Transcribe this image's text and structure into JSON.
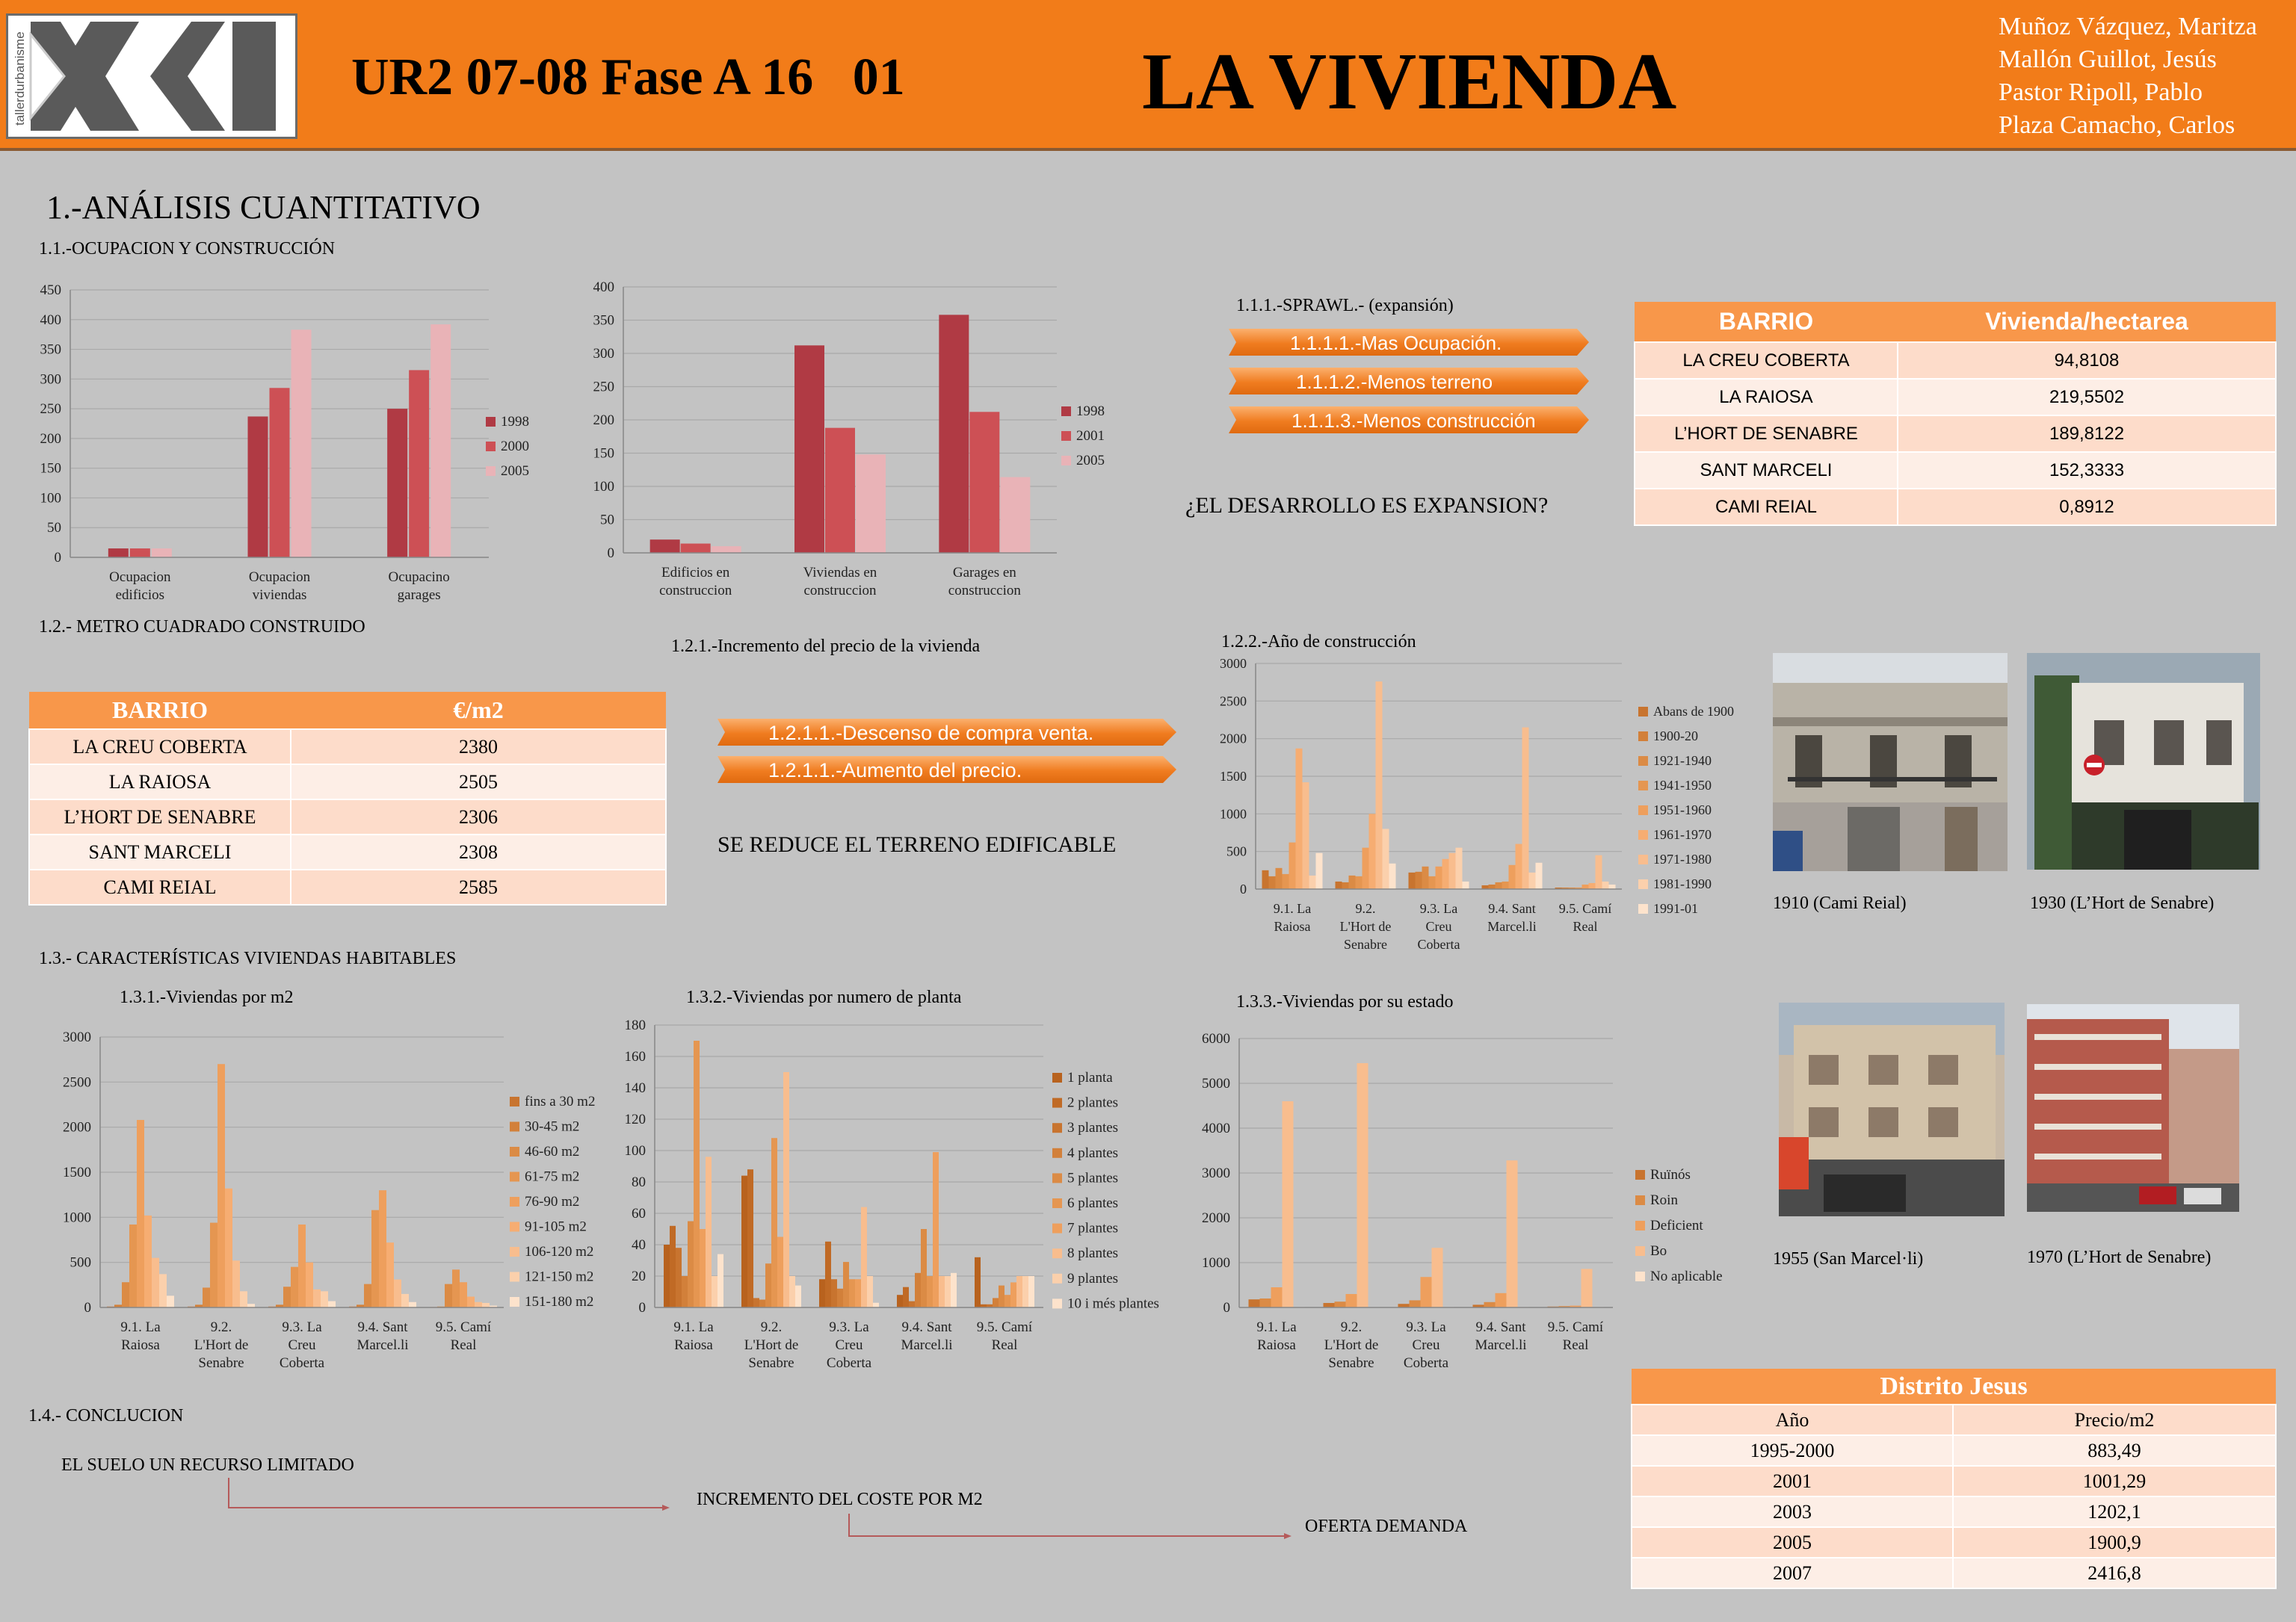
{
  "header": {
    "logo_text": "tallerdurbanisme",
    "code": "UR2 07-08 Fase A 16   01",
    "title": "LA VIVIENDA",
    "authors": [
      "Muñoz Vázquez, Maritza",
      "Mallón Guillot, Jesús",
      "Pastor Ripoll,  Pablo",
      "Plaza Camacho, Carlos"
    ]
  },
  "section1": "1.-ANÁLISIS CUANTITATIVO",
  "s11": "1.1.-OCUPACION  Y CONSTRUCCIÓN",
  "s111": "1.1.1.-SPRAWL.- (expansión)",
  "arrows111": [
    "1.1.1.1.-Mas Ocupación.",
    "1.1.1.2.-Menos terreno",
    "1.1.1.3.-Menos construcción"
  ],
  "q1": "¿EL DESARROLLO ES EXPANSION?",
  "s12": "1.2.- METRO CUADRADO CONSTRUIDO",
  "s121": "1.2.1.-Incremento del precio de la vivienda",
  "arrows121": [
    "1.2.1.1.-Descenso de compra venta.",
    "1.2.1.1.-Aumento del precio."
  ],
  "reduce": "SE REDUCE EL TERRENO EDIFICABLE",
  "s122": "1.2.2.-Año de construcción",
  "s13": "1.3.- CARACTERÍSTICAS VIVIENDAS HABITABLES",
  "s131": "1.3.1.-Viviendas por m2",
  "s132": "1.3.2.-Viviendas por numero de planta",
  "s133": "1.3.3.-Viviendas por su estado",
  "s14": "1.4.- CONCLUCION",
  "concl": [
    "EL SUELO UN RECURSO LIMITADO",
    "INCREMENTO DEL COSTE POR M2",
    "OFERTA DEMANDA"
  ],
  "table_density": {
    "headers": [
      "BARRIO",
      "Vivienda/hectarea"
    ],
    "rows": [
      [
        "LA CREU COBERTA",
        "94,8108"
      ],
      [
        "LA RAIOSA",
        "219,5502"
      ],
      [
        "L’HORT DE SENABRE",
        "189,8122"
      ],
      [
        "SANT MARCELI",
        "152,3333"
      ],
      [
        "CAMI REIAL",
        "0,8912"
      ]
    ]
  },
  "table_m2": {
    "headers": [
      "BARRIO",
      "€/m2"
    ],
    "rows": [
      [
        "LA CREU COBERTA",
        "2380"
      ],
      [
        "LA  RAIOSA",
        "2505"
      ],
      [
        "L’HORT DE SENABRE",
        "2306"
      ],
      [
        "SANT  MARCELI",
        "2308"
      ],
      [
        "CAMI  REIAL",
        "2585"
      ]
    ]
  },
  "table_jesus": {
    "title": "Distrito Jesus",
    "headers": [
      "Año",
      "Precio/m2"
    ],
    "rows": [
      [
        "1995-2000",
        "883,49"
      ],
      [
        "2001",
        "1001,29"
      ],
      [
        "2003",
        "1202,1"
      ],
      [
        "2005",
        "1900,9"
      ],
      [
        "2007",
        "2416,8"
      ]
    ]
  },
  "photos": [
    {
      "caption": "1910 (Cami Reial)"
    },
    {
      "caption": "1930 (L’Hort de Senabre)"
    },
    {
      "caption": "1955 (San Marcel·li)"
    },
    {
      "caption": "1970 (L’Hort de Senabre)"
    }
  ],
  "chart_data": [
    {
      "id": "c1",
      "type": "bar",
      "categories": [
        "Ocupacion edificios",
        "Ocupacion viviendas",
        "Ocupacino garages"
      ],
      "ylim": [
        0,
        450
      ],
      "ticks": [
        0,
        50,
        100,
        150,
        200,
        250,
        300,
        350,
        400,
        450
      ],
      "series": [
        {
          "name": "1998",
          "color": "#b03a44",
          "values": [
            15,
            237,
            250
          ]
        },
        {
          "name": "2000",
          "color": "#cd5055",
          "values": [
            15,
            285,
            315
          ]
        },
        {
          "name": "2005",
          "color": "#e9b3b7",
          "values": [
            15,
            383,
            392
          ]
        }
      ]
    },
    {
      "id": "c2",
      "type": "bar",
      "categories": [
        "Edificios en construccion",
        "Viviendas en construccion",
        "Garages en construccion"
      ],
      "ylim": [
        0,
        400
      ],
      "ticks": [
        0,
        50,
        100,
        150,
        200,
        250,
        300,
        350,
        400
      ],
      "series": [
        {
          "name": "1998",
          "color": "#b03a44",
          "values": [
            20,
            312,
            358
          ]
        },
        {
          "name": "2001",
          "color": "#cd5055",
          "values": [
            14,
            188,
            212
          ]
        },
        {
          "name": "2005",
          "color": "#e9b3b7",
          "values": [
            10,
            148,
            114
          ]
        }
      ]
    },
    {
      "id": "c3",
      "type": "bar",
      "categories": [
        "9.1. La Raiosa",
        "9.2. L'Hort de Senabre",
        "9.3. La Creu Coberta",
        "9.4. Sant Marcel.li",
        "9.5. Camí Real"
      ],
      "ylim": [
        0,
        3000
      ],
      "ticks": [
        0,
        500,
        1000,
        1500,
        2000,
        2500,
        3000
      ],
      "series": [
        {
          "name": "Abans de 1900",
          "color": "#c8742f",
          "values": [
            250,
            100,
            220,
            50,
            20
          ]
        },
        {
          "name": "1900-20",
          "color": "#d2803a",
          "values": [
            170,
            90,
            230,
            60,
            20
          ]
        },
        {
          "name": "1921-1940",
          "color": "#db8b45",
          "values": [
            280,
            180,
            300,
            90,
            20
          ]
        },
        {
          "name": "1941-1950",
          "color": "#e59651",
          "values": [
            200,
            170,
            170,
            100,
            20
          ]
        },
        {
          "name": "1951-1960",
          "color": "#ee9f5d",
          "values": [
            620,
            550,
            300,
            320,
            60
          ]
        },
        {
          "name": "1961-1970",
          "color": "#f6ad72",
          "values": [
            1870,
            1000,
            400,
            600,
            80
          ]
        },
        {
          "name": "1971-1980",
          "color": "#f8bd8e",
          "values": [
            1420,
            2760,
            480,
            2150,
            450
          ]
        },
        {
          "name": "1981-1990",
          "color": "#fbd0ac",
          "values": [
            180,
            800,
            550,
            220,
            100
          ]
        },
        {
          "name": "1991-01",
          "color": "#fde3cc",
          "values": [
            480,
            340,
            100,
            350,
            60
          ]
        }
      ]
    },
    {
      "id": "c4",
      "type": "bar",
      "categories": [
        "9.1. La Raiosa",
        "9.2. L'Hort de Senabre",
        "9.3. La Creu Coberta",
        "9.4. Sant Marcel.li",
        "9.5. Camí Real"
      ],
      "ylim": [
        0,
        3000
      ],
      "ticks": [
        0,
        500,
        1000,
        1500,
        2000,
        2500,
        3000
      ],
      "series": [
        {
          "name": "fins a 30 m2",
          "color": "#c8742f",
          "values": [
            10,
            10,
            10,
            10,
            5
          ]
        },
        {
          "name": "30-45 m2",
          "color": "#d2803a",
          "values": [
            30,
            30,
            30,
            30,
            10
          ]
        },
        {
          "name": "46-60 m2",
          "color": "#db8b45",
          "values": [
            280,
            220,
            230,
            260,
            260
          ]
        },
        {
          "name": "61-75 m2",
          "color": "#e59651",
          "values": [
            920,
            940,
            450,
            1080,
            420
          ]
        },
        {
          "name": "76-90 m2",
          "color": "#ee9f5d",
          "values": [
            2080,
            2700,
            920,
            1300,
            280
          ]
        },
        {
          "name": "91-105 m2",
          "color": "#f6ad72",
          "values": [
            1020,
            1320,
            500,
            720,
            120
          ]
        },
        {
          "name": "106-120 m2",
          "color": "#f8bd8e",
          "values": [
            550,
            520,
            200,
            310,
            60
          ]
        },
        {
          "name": "121-150 m2",
          "color": "#fbd0ac",
          "values": [
            370,
            180,
            180,
            150,
            50
          ]
        },
        {
          "name": "151-180 m2",
          "color": "#fde3cc",
          "values": [
            130,
            40,
            70,
            60,
            20
          ]
        }
      ]
    },
    {
      "id": "c5",
      "type": "bar",
      "categories": [
        "9.1. La Raiosa",
        "9.2. L'Hort de Senabre",
        "9.3. La Creu Coberta",
        "9.4. Sant Marcel.li",
        "9.5. Camí Real"
      ],
      "ylim": [
        0,
        180
      ],
      "ticks": [
        0,
        20,
        40,
        60,
        80,
        100,
        120,
        140,
        160,
        180
      ],
      "series": [
        {
          "name": "1 planta",
          "color": "#b8621e",
          "values": [
            40,
            84,
            18,
            8,
            32
          ]
        },
        {
          "name": "2 plantes",
          "color": "#c06a25",
          "values": [
            52,
            88,
            42,
            13,
            2
          ]
        },
        {
          "name": "3 plantes",
          "color": "#c8742f",
          "values": [
            38,
            6,
            18,
            4,
            2
          ]
        },
        {
          "name": "4 plantes",
          "color": "#d2803a",
          "values": [
            20,
            5,
            12,
            22,
            6
          ]
        },
        {
          "name": "5 plantes",
          "color": "#db8b45",
          "values": [
            55,
            28,
            29,
            50,
            14
          ]
        },
        {
          "name": "6 plantes",
          "color": "#e59651",
          "values": [
            170,
            108,
            18,
            20,
            8
          ]
        },
        {
          "name": "7 plantes",
          "color": "#ee9f5d",
          "values": [
            50,
            45,
            18,
            99,
            16
          ]
        },
        {
          "name": "8 plantes",
          "color": "#f8bd8e",
          "values": [
            96,
            150,
            64,
            20,
            20
          ]
        },
        {
          "name": "9 plantes",
          "color": "#fbd0ac",
          "values": [
            20,
            20,
            20,
            20,
            20
          ]
        },
        {
          "name": "10 i més plantes",
          "color": "#fde3cc",
          "values": [
            34,
            14,
            3,
            22,
            20
          ]
        }
      ]
    },
    {
      "id": "c6",
      "type": "bar",
      "categories": [
        "9.1. La Raiosa",
        "9.2. L'Hort de Senabre",
        "9.3. La Creu Coberta",
        "9.4. Sant Marcel.li",
        "9.5. Camí Real"
      ],
      "ylim": [
        0,
        6000
      ],
      "ticks": [
        0,
        1000,
        2000,
        3000,
        4000,
        5000,
        6000
      ],
      "series": [
        {
          "name": "Ruïnós",
          "color": "#c8742f",
          "values": [
            180,
            100,
            80,
            60,
            20
          ]
        },
        {
          "name": "Roin",
          "color": "#db8b45",
          "values": [
            200,
            130,
            160,
            120,
            30
          ]
        },
        {
          "name": "Deficient",
          "color": "#ee9f5d",
          "values": [
            450,
            300,
            680,
            320,
            40
          ]
        },
        {
          "name": "Bo",
          "color": "#f8bd8e",
          "values": [
            4600,
            5450,
            1330,
            3280,
            860
          ]
        },
        {
          "name": "No aplicable",
          "color": "#fde3cc",
          "values": [
            10,
            10,
            10,
            10,
            10
          ]
        }
      ]
    }
  ]
}
